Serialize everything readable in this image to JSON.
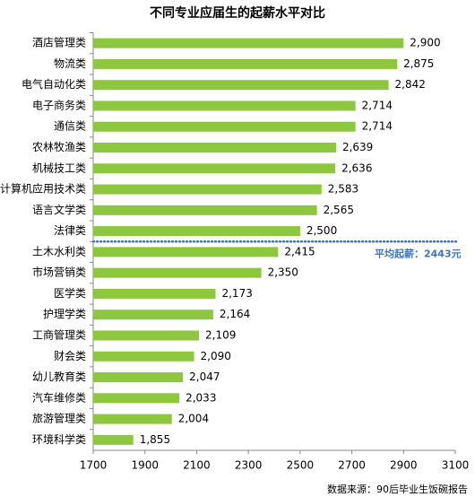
{
  "chart_data": {
    "type": "bar",
    "orientation": "horizontal",
    "title": "不同专业应届生的起薪水平对比",
    "categories": [
      "酒店管理类",
      "物流类",
      "电气自动化类",
      "电子商务类",
      "通信类",
      "农林牧渔类",
      "机械技工类",
      "计算机应用技术类",
      "语言文学类",
      "法律类",
      "土木水利类",
      "市场营销类",
      "医学类",
      "护理学类",
      "工商管理类",
      "财会类",
      "幼儿教育类",
      "汽车维修类",
      "旅游管理类",
      "环境科学类"
    ],
    "values": [
      2900,
      2875,
      2842,
      2714,
      2714,
      2639,
      2636,
      2583,
      2565,
      2500,
      2415,
      2350,
      2173,
      2164,
      2109,
      2090,
      2047,
      2033,
      2004,
      1855
    ],
    "value_labels": [
      "2,900",
      "2,875",
      "2,842",
      "2,714",
      "2,714",
      "2,639",
      "2,636",
      "2,583",
      "2,565",
      "2,500",
      "2,415",
      "2,350",
      "2,173",
      "2,164",
      "2,109",
      "2,090",
      "2,047",
      "2,033",
      "2,004",
      "1,855"
    ],
    "color": "#8dc63f",
    "xlim": [
      1700,
      3100
    ],
    "xticks": [
      1700,
      1900,
      2100,
      2300,
      2500,
      2700,
      2900,
      3100
    ],
    "annotation": "平均起薪：2443元",
    "annotation_color": "#3b78c4",
    "source": "数据来源：90后毕业生饭碗报告"
  }
}
